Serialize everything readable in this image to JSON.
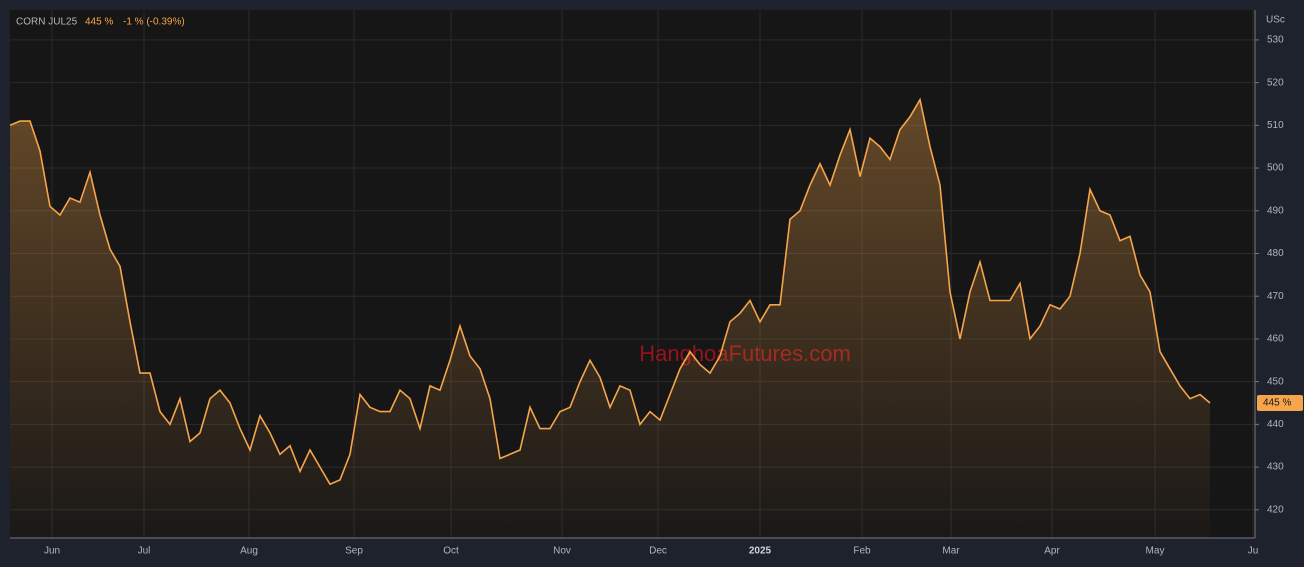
{
  "chart_data": {
    "type": "line",
    "title": "CORN JUL25",
    "price": "445 %",
    "change": "-1 % (-0.39%)",
    "unit": "USc",
    "watermark": "HanghoaFutures.com",
    "last_price_label": "445 %",
    "color": "#f7a54a",
    "xlim": [
      0,
      124.5
    ],
    "xticks": [
      {
        "value": 4.2,
        "label": "Jun"
      },
      {
        "value": 13.4,
        "label": "Jul"
      },
      {
        "value": 23.9,
        "label": "Aug"
      },
      {
        "value": 34.4,
        "label": "Sep"
      },
      {
        "value": 44.1,
        "label": "Oct"
      },
      {
        "value": 55.2,
        "label": "Nov"
      },
      {
        "value": 64.8,
        "label": "Dec"
      },
      {
        "value": 75,
        "label": "2025"
      },
      {
        "value": 85.2,
        "label": "Feb"
      },
      {
        "value": 94.1,
        "label": "Mar"
      },
      {
        "value": 104.2,
        "label": "Apr"
      },
      {
        "value": 114.5,
        "label": "May"
      },
      {
        "value": 124.3,
        "label": "Ju"
      }
    ],
    "ylim": [
      413.4,
      537
    ],
    "yticks": [
      420,
      430,
      440,
      450,
      460,
      470,
      480,
      490,
      500,
      510,
      520,
      530
    ],
    "grid": true,
    "values": [
      510,
      511,
      511,
      504,
      491,
      489,
      493,
      492,
      499,
      489,
      481,
      477,
      464,
      452,
      452,
      443,
      440,
      446,
      436,
      438,
      446,
      448,
      445,
      439,
      434,
      442,
      438,
      433,
      435,
      429,
      434,
      430,
      426,
      427,
      433,
      447,
      444,
      443,
      443,
      448,
      446,
      439,
      449,
      448,
      455,
      463,
      456,
      453,
      446,
      432,
      433,
      434,
      444,
      439,
      439,
      443,
      444,
      450,
      455,
      451,
      444,
      449,
      448,
      440,
      443,
      441,
      447,
      453,
      457,
      454,
      452,
      456,
      464,
      466,
      469,
      464,
      468,
      468,
      488,
      490,
      496,
      501,
      496,
      503,
      509,
      498,
      507,
      505,
      502,
      509,
      512,
      516,
      505,
      496,
      471,
      460,
      471,
      478,
      469,
      469,
      469,
      473,
      460,
      463,
      468,
      467,
      470,
      480,
      495,
      490,
      489,
      483,
      484,
      475,
      471,
      457,
      453,
      449,
      446,
      447,
      445
    ]
  }
}
